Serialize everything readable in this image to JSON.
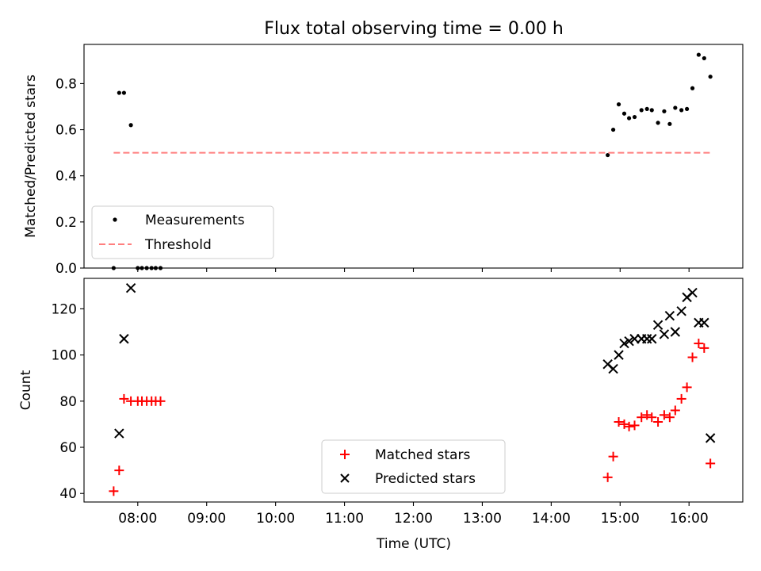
{
  "figure": {
    "title": "Flux total observing time = 0.00 h",
    "xlabel": "Time (UTC)"
  },
  "chart_data": [
    {
      "type": "scatter",
      "panel": "top",
      "ylabel": "Matched/Predicted stars",
      "x_unit": "hours UTC",
      "xlim": [
        7.22,
        16.78
      ],
      "ylim": [
        0,
        0.97
      ],
      "yticks": [
        0,
        0.2,
        0.4,
        0.6,
        0.8
      ],
      "ytick_labels": [
        "0.0",
        "0.2",
        "0.4",
        "0.6",
        "0.8"
      ],
      "legend_position": "lower-left",
      "series": [
        {
          "name": "Measurements",
          "marker": "dot",
          "color": "#000000",
          "x": [
            7.65,
            7.73,
            7.8,
            7.9,
            8.0,
            8.06,
            8.13,
            8.2,
            8.26,
            8.33,
            14.82,
            14.9,
            14.98,
            15.06,
            15.13,
            15.21,
            15.31,
            15.39,
            15.46,
            15.55,
            15.64,
            15.72,
            15.8,
            15.89,
            15.97,
            16.05,
            16.14,
            16.22,
            16.31
          ],
          "y": [
            0.0,
            0.76,
            0.76,
            0.62,
            0.0,
            0.0,
            0.0,
            0.0,
            0.0,
            0.0,
            0.49,
            0.6,
            0.71,
            0.67,
            0.65,
            0.655,
            0.685,
            0.69,
            0.685,
            0.63,
            0.68,
            0.625,
            0.695,
            0.685,
            0.69,
            0.78,
            0.925,
            0.91,
            0.83
          ]
        },
        {
          "name": "Threshold",
          "line": "dashed",
          "color": "#ff7f7f",
          "x": [
            7.65,
            16.31
          ],
          "y": [
            0.5,
            0.5
          ]
        }
      ]
    },
    {
      "type": "scatter",
      "panel": "bottom",
      "ylabel": "Count",
      "x_unit": "hours UTC",
      "xlim": [
        7.22,
        16.78
      ],
      "ylim": [
        36.3,
        133.2
      ],
      "yticks": [
        40,
        60,
        80,
        100,
        120
      ],
      "ytick_labels": [
        "40",
        "60",
        "80",
        "100",
        "120"
      ],
      "xticks": [
        8,
        9,
        10,
        11,
        12,
        13,
        14,
        15,
        16
      ],
      "xtick_labels": [
        "08:00",
        "09:00",
        "10:00",
        "11:00",
        "12:00",
        "13:00",
        "14:00",
        "15:00",
        "16:00"
      ],
      "legend_position": "lower-center",
      "series": [
        {
          "name": "Matched stars",
          "marker": "plus",
          "color": "#ff0000",
          "x": [
            7.65,
            7.73,
            7.8,
            7.9,
            8.0,
            8.06,
            8.13,
            8.2,
            8.26,
            8.33,
            14.82,
            14.9,
            14.98,
            15.06,
            15.13,
            15.21,
            15.31,
            15.39,
            15.46,
            15.55,
            15.64,
            15.72,
            15.8,
            15.89,
            15.97,
            16.05,
            16.14,
            16.22,
            16.31
          ],
          "y": [
            41,
            50,
            81,
            80,
            80,
            80,
            80,
            80,
            80,
            80,
            47,
            56,
            71,
            70,
            69,
            69.5,
            73,
            74,
            73,
            71,
            74,
            73,
            76,
            81,
            86,
            99,
            105,
            103,
            53
          ]
        },
        {
          "name": "Predicted stars",
          "marker": "x",
          "color": "#000000",
          "x": [
            7.73,
            7.8,
            7.9,
            14.82,
            14.9,
            14.98,
            15.06,
            15.13,
            15.21,
            15.31,
            15.39,
            15.46,
            15.55,
            15.64,
            15.72,
            15.8,
            15.89,
            15.97,
            16.05,
            16.14,
            16.22,
            16.31
          ],
          "y": [
            66,
            107,
            129,
            96,
            94,
            100,
            105,
            106,
            107,
            107,
            107,
            107,
            113,
            109,
            117,
            110,
            119,
            125,
            127,
            114,
            114,
            64
          ]
        }
      ]
    }
  ]
}
